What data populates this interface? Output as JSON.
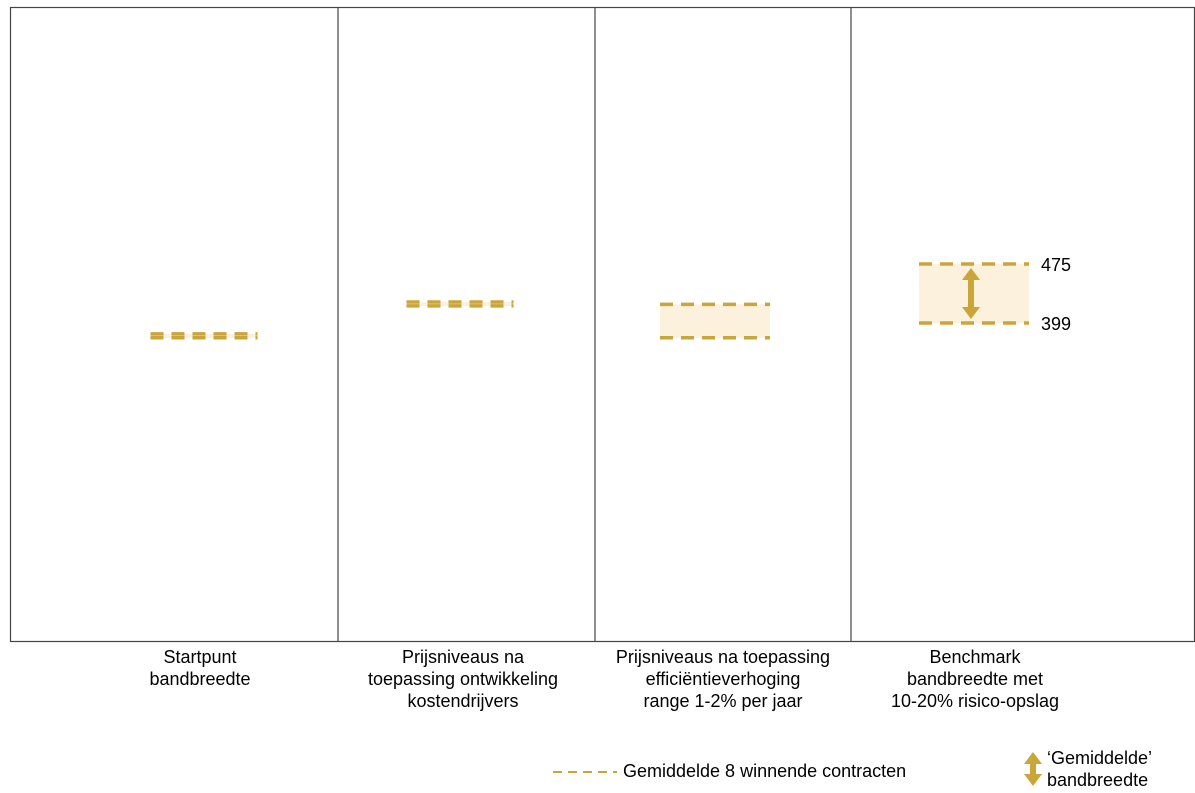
{
  "chart_data": {
    "type": "range",
    "categories": [
      "Startpunt\nbandbreedte",
      "Prijsniveaus na\ntoepassing ontwikkeling\nkostendrijvers",
      "Prijsniveaus na toepassing\nefficiëntieverhoging\nrange 1-2% per jaar",
      "Benchmark\nbandbreedte met\n10-20% risico-opslag"
    ],
    "series": [
      {
        "name": "Gemiddelde 8 winnende contracten",
        "ranges": [
          [
            380,
            385
          ],
          [
            421,
            426
          ],
          [
            380,
            423
          ],
          [
            399,
            475
          ]
        ]
      }
    ],
    "value_labels": [
      "475",
      "399"
    ],
    "legend": {
      "average_label": "Gemiddelde 8 winnende contracten",
      "band_label": "‘Gemiddelde’\nbandbreedte"
    },
    "colors": {
      "dash": "#c9a53a",
      "band_fill": "#fbf1dc",
      "arrow": "#c9a53a",
      "border": "#444444"
    },
    "ylim": [
      0,
      800
    ]
  }
}
